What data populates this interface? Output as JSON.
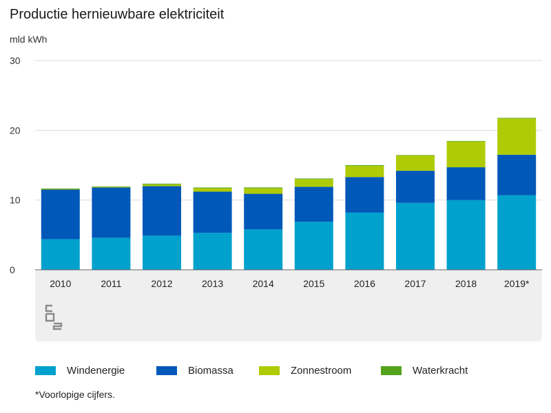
{
  "title": "Productie hernieuwbare elektriciteit",
  "unit_label": "mld kWh",
  "footnote": "*Voorlopige cijfers.",
  "logo_text": "cbs",
  "colors": {
    "Windenergie": "#00a1cd",
    "Biomassa": "#0058b8",
    "Zonnestroom": "#afcb05",
    "Waterkracht": "#53a31d",
    "grid": "#dcdcdc",
    "axis": "#666666",
    "panel": "#efefef"
  },
  "chart_data": {
    "type": "bar",
    "stacked": true,
    "title": "Productie hernieuwbare elektriciteit",
    "ylabel": "mld kWh",
    "xlabel": "",
    "ylim": [
      0,
      30
    ],
    "yticks": [
      0,
      10,
      20,
      30
    ],
    "categories": [
      "2010",
      "2011",
      "2012",
      "2013",
      "2014",
      "2015",
      "2016",
      "2017",
      "2018",
      "2019*"
    ],
    "series": [
      {
        "name": "Windenergie",
        "values": [
          4.4,
          4.6,
          4.9,
          5.3,
          5.8,
          6.9,
          8.2,
          9.6,
          10.0,
          10.7
        ]
      },
      {
        "name": "Biomassa",
        "values": [
          7.1,
          7.2,
          7.1,
          5.9,
          5.1,
          5.0,
          5.1,
          4.6,
          4.7,
          5.8
        ]
      },
      {
        "name": "Zonnestroom",
        "values": [
          0.05,
          0.1,
          0.25,
          0.5,
          0.8,
          1.1,
          1.6,
          2.2,
          3.7,
          5.2
        ]
      },
      {
        "name": "Waterkracht",
        "values": [
          0.1,
          0.06,
          0.1,
          0.1,
          0.11,
          0.09,
          0.1,
          0.06,
          0.07,
          0.08
        ]
      }
    ],
    "legend_position": "bottom"
  }
}
